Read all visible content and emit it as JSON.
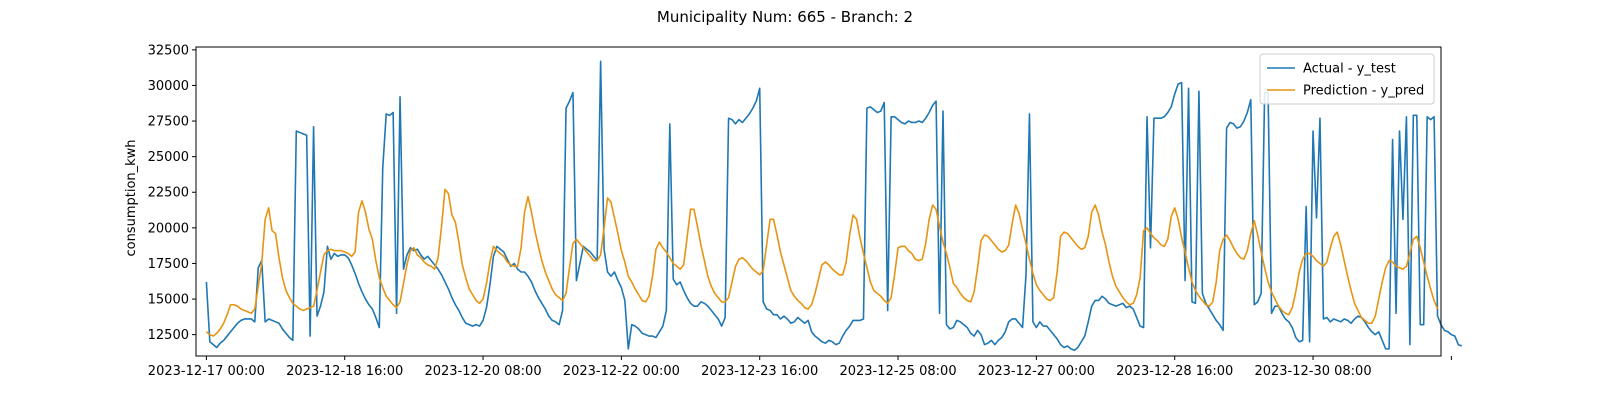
{
  "chart_data": {
    "type": "line",
    "title": "Municipality Num: 665 - Branch: 2",
    "xlabel": "",
    "ylabel": "consumption_kwh",
    "ylim": [
      11000,
      32700
    ],
    "xlim": [
      "2023-12-16 21:00",
      "2023-12-31 21:00"
    ],
    "x_start": "2023-12-17 00:00",
    "x_step_hours": 1,
    "x_ticks": [
      "2023-12-17 00:00",
      "2023-12-18 16:00",
      "2023-12-20 08:00",
      "2023-12-22 00:00",
      "2023-12-23 16:00",
      "2023-12-25 08:00",
      "2023-12-27 00:00",
      "2023-12-28 16:00",
      "2023-12-30 08:00",
      "2024-01-01 00:00"
    ],
    "x_tick_labels": [
      "2023-12-17 00:00",
      "2023-12-18 16:00",
      "2023-12-20 08:00",
      "2023-12-22 00:00",
      "2023-12-23 16:00",
      "2023-12-25 08:00",
      "2023-12-27 00:00",
      "2023-12-28 16:00",
      "2023-12-30 08:00",
      ""
    ],
    "y_ticks": [
      12500,
      15000,
      17500,
      20000,
      22500,
      25000,
      27500,
      30000,
      32500
    ],
    "y_tick_labels": [
      "12500",
      "15000",
      "17500",
      "20000",
      "22500",
      "25000",
      "27500",
      "30000",
      "32500"
    ],
    "legend_position": "top-right",
    "grid": false,
    "series": [
      {
        "name": "Actual - y_test",
        "color": "#1f77b4",
        "values": [
          16200,
          12000,
          11800,
          11600,
          11900,
          12100,
          12400,
          12700,
          13000,
          13300,
          13500,
          13600,
          13600,
          13600,
          13400,
          17200,
          17700,
          13400,
          13600,
          13500,
          13400,
          13300,
          12900,
          12600,
          12300,
          12100,
          26800,
          26700,
          26600,
          26500,
          12400,
          27100,
          13800,
          14500,
          15500,
          18700,
          17800,
          18200,
          18000,
          18100,
          18100,
          17900,
          17400,
          16800,
          16100,
          15500,
          15000,
          14600,
          14300,
          13700,
          13000,
          24200,
          28000,
          27900,
          28100,
          14000,
          29200,
          17100,
          18100,
          18600,
          18400,
          18500,
          18100,
          17800,
          18000,
          17700,
          17400,
          17100,
          16700,
          16200,
          15700,
          15100,
          14600,
          14200,
          13700,
          13300,
          13200,
          13100,
          13200,
          13100,
          13500,
          14400,
          16000,
          18000,
          18700,
          18500,
          18300,
          17800,
          17300,
          17500,
          17100,
          16900,
          16900,
          16600,
          16200,
          15600,
          15100,
          14700,
          14300,
          13800,
          13500,
          13400,
          13200,
          14200,
          28400,
          28900,
          29500,
          16300,
          17500,
          18700,
          18500,
          18300,
          18000,
          17700,
          31700,
          18500,
          16900,
          16600,
          16900,
          16300,
          15800,
          14900,
          11500,
          13200,
          13100,
          12900,
          12600,
          12500,
          12400,
          12400,
          12300,
          12700,
          13100,
          14200,
          27300,
          16400,
          16000,
          16200,
          15600,
          15100,
          14700,
          14500,
          14500,
          14800,
          14700,
          14500,
          14200,
          13900,
          13600,
          13100,
          13700,
          27700,
          27600,
          27300,
          27600,
          27400,
          27700,
          28000,
          28400,
          28900,
          29800,
          14800,
          14300,
          14200,
          13900,
          13900,
          13600,
          13800,
          13600,
          13300,
          13400,
          13700,
          13500,
          13300,
          13500,
          12700,
          12400,
          12200,
          12000,
          11900,
          12100,
          12000,
          11800,
          11900,
          12400,
          12800,
          13100,
          13500,
          13500,
          13500,
          13600,
          28400,
          28500,
          28300,
          28100,
          28200,
          28800,
          14200,
          27800,
          27800,
          27600,
          27400,
          27300,
          27500,
          27400,
          27400,
          27500,
          27400,
          27700,
          28100,
          28600,
          28900,
          14000,
          28200,
          13200,
          12900,
          13000,
          13500,
          13400,
          13200,
          13000,
          12600,
          12400,
          12800,
          12500,
          11800,
          11900,
          12100,
          11800,
          12100,
          12300,
          12700,
          13400,
          13600,
          13600,
          13300,
          13000,
          16700,
          28000,
          13400,
          13000,
          13400,
          13100,
          13100,
          12800,
          12500,
          12200,
          11800,
          11600,
          11700,
          11500,
          11400,
          11600,
          12000,
          12400,
          13400,
          14500,
          14900,
          14900,
          15200,
          15000,
          14700,
          14600,
          14500,
          14600,
          14700,
          14400,
          14500,
          14300,
          13700,
          13100,
          13000,
          27800,
          18600,
          27700,
          27700,
          27700,
          27800,
          28100,
          28500,
          29400,
          30100,
          30200,
          16300,
          29800,
          14800,
          14700,
          29600,
          15400,
          14700,
          14300,
          13900,
          13500,
          13200,
          12800,
          27000,
          27400,
          27300,
          27000,
          27100,
          27500,
          28100,
          29000,
          14600,
          14800,
          15400,
          29500,
          29500,
          14000,
          14500,
          14500,
          14000,
          13600,
          13400,
          13000,
          12300,
          12000,
          12100,
          21500,
          12000,
          26800,
          20700,
          27700,
          13600,
          13700,
          13400,
          13600,
          13500,
          13400,
          13600,
          13500,
          13300,
          13600,
          13800,
          13700,
          13400,
          13000,
          12700,
          12500,
          12700,
          12100,
          11500,
          11500,
          26200,
          14000,
          26800,
          20600,
          27800,
          11800,
          27900,
          27900,
          13200,
          13200,
          27800,
          27600,
          27800,
          13800,
          13200,
          12800,
          12700,
          12500,
          12400,
          11800,
          11700
        ]
      },
      {
        "name": "Prediction - y_pred",
        "color": "#e69412",
        "values": [
          12700,
          12500,
          12400,
          12600,
          12900,
          13300,
          13900,
          14600,
          14600,
          14500,
          14300,
          14200,
          14100,
          14000,
          14300,
          15900,
          17500,
          20600,
          21400,
          19800,
          19600,
          17900,
          16500,
          15600,
          15100,
          14700,
          14500,
          14300,
          14200,
          14300,
          14400,
          14500,
          15600,
          16900,
          18100,
          18400,
          18500,
          18400,
          18400,
          18400,
          18300,
          18200,
          18000,
          18300,
          21100,
          21900,
          21100,
          19900,
          19200,
          17700,
          16500,
          15800,
          15200,
          14900,
          14600,
          14400,
          14800,
          16100,
          17400,
          18400,
          18600,
          18100,
          17900,
          17600,
          17400,
          17300,
          17100,
          17900,
          20100,
          22700,
          22400,
          20900,
          20400,
          19000,
          17400,
          16500,
          15700,
          15300,
          14900,
          14700,
          15000,
          16100,
          17600,
          18700,
          18400,
          18200,
          18000,
          17600,
          17400,
          17300,
          17300,
          18600,
          21100,
          22200,
          21100,
          19800,
          18700,
          17700,
          16900,
          16300,
          15700,
          15300,
          15100,
          14900,
          15400,
          17200,
          18900,
          19200,
          18900,
          18600,
          18300,
          18000,
          17700,
          17700,
          18100,
          20000,
          22100,
          21800,
          20700,
          19600,
          18400,
          17600,
          16600,
          16200,
          15700,
          15300,
          14900,
          14800,
          15200,
          16600,
          18500,
          19000,
          18600,
          18300,
          17900,
          17500,
          17300,
          17100,
          17400,
          19300,
          21300,
          21300,
          20100,
          18800,
          17700,
          16600,
          15900,
          15400,
          15100,
          14800,
          14800,
          15100,
          16200,
          17300,
          17800,
          17900,
          17700,
          17400,
          17100,
          16900,
          16700,
          17000,
          18800,
          20600,
          20600,
          19500,
          18300,
          17400,
          16500,
          15600,
          15200,
          14900,
          14700,
          14400,
          14300,
          14600,
          15400,
          16400,
          17400,
          17600,
          17400,
          17100,
          16900,
          16700,
          16700,
          17600,
          19500,
          20900,
          20600,
          19300,
          18200,
          17200,
          16200,
          15600,
          15400,
          15200,
          14900,
          14700,
          15100,
          16700,
          18600,
          18700,
          18700,
          18400,
          18200,
          17800,
          17700,
          17800,
          18900,
          20600,
          21600,
          21300,
          20100,
          19000,
          18200,
          17200,
          16100,
          15800,
          15400,
          15100,
          14900,
          14800,
          15500,
          17200,
          19100,
          19500,
          19400,
          19100,
          18800,
          18500,
          18300,
          18400,
          18800,
          20300,
          21600,
          21000,
          19900,
          18900,
          17800,
          16800,
          16000,
          15600,
          15300,
          15000,
          14900,
          15100,
          16900,
          19400,
          19700,
          19600,
          19300,
          19000,
          18700,
          18500,
          18600,
          19400,
          21100,
          21600,
          20900,
          19700,
          18800,
          17600,
          16600,
          15900,
          15500,
          15100,
          14800,
          14600,
          14700,
          15300,
          16500,
          19800,
          20000,
          19600,
          19300,
          19100,
          18800,
          18700,
          19200,
          20800,
          21400,
          20600,
          19300,
          18300,
          17200,
          16200,
          15600,
          15200,
          14900,
          14600,
          14500,
          14800,
          16200,
          18400,
          19200,
          19500,
          19100,
          18600,
          18200,
          17900,
          17800,
          18400,
          19600,
          20500,
          19500,
          18300,
          17200,
          16200,
          15500,
          15000,
          14500,
          14200,
          14000,
          13900,
          14400,
          15500,
          16900,
          17800,
          18200,
          18200,
          18000,
          17700,
          17500,
          17300,
          17600,
          18600,
          19400,
          19700,
          18800,
          17700,
          16600,
          15600,
          14700,
          14200,
          13700,
          13500,
          13300,
          13300,
          13800,
          15000,
          16200,
          17200,
          17700,
          17600,
          17300,
          17200,
          17100,
          17300,
          18200,
          19200,
          19400,
          18600,
          17600,
          16600,
          15700,
          14900,
          14300
        ]
      }
    ]
  }
}
